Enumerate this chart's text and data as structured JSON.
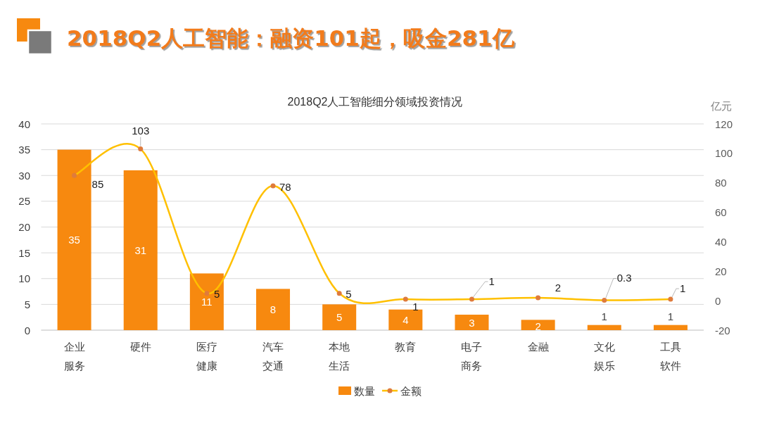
{
  "chart_data": {
    "type": "bar",
    "title": "2018Q2人工智能：融资101起，吸金281亿",
    "subtitle": "2018Q2人工智能细分领域投资情况",
    "y2label": "亿元",
    "categories": [
      "企业服务",
      "硬件",
      "医疗健康",
      "汽车交通",
      "本地生活",
      "教育",
      "电子商务",
      "金融",
      "文化娱乐",
      "工具软件"
    ],
    "series": [
      {
        "name": "数量",
        "color": "#f7890f",
        "values": [
          35,
          31,
          11,
          8,
          5,
          4,
          3,
          2,
          1,
          1
        ]
      },
      {
        "name": "金额",
        "type": "line",
        "axis": "y2",
        "color": "#ffc000",
        "values": [
          85,
          103,
          5,
          78,
          5,
          1,
          1,
          2,
          0.3,
          1
        ]
      }
    ],
    "ylim": [
      0,
      40
    ],
    "yticks": [
      0,
      5,
      10,
      15,
      20,
      25,
      30,
      35,
      40
    ],
    "y2lim": [
      -20,
      120
    ],
    "y2ticks": [
      -20,
      0,
      20,
      40,
      60,
      80,
      100,
      120
    ],
    "grid": "y",
    "legend": "bottom",
    "marker": "circle",
    "data_labels": true
  }
}
